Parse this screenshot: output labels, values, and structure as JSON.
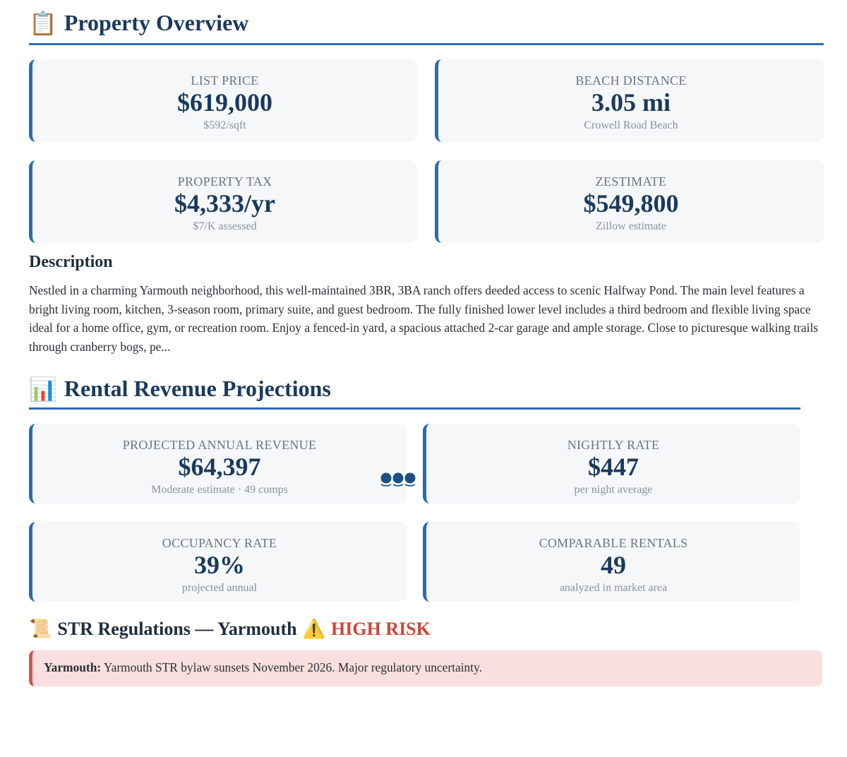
{
  "overview": {
    "icon": "clipboard-icon",
    "icon_glyph": "📋",
    "title": "Property Overview",
    "cards": [
      {
        "label": "LIST PRICE",
        "value": "$619,000",
        "sub": "$592/sqft"
      },
      {
        "label": "BEACH DISTANCE",
        "value": "3.05 mi",
        "sub": "Crowell Road Beach"
      },
      {
        "label": "PROPERTY TAX",
        "value": "$4,333/yr",
        "sub": "$7/K assessed"
      },
      {
        "label": "ZESTIMATE",
        "value": "$549,800",
        "sub": "Zillow estimate"
      }
    ]
  },
  "description": {
    "heading": "Description",
    "body": "Nestled in a charming Yarmouth neighborhood, this well-maintained 3BR, 3BA ranch offers deeded access to scenic Halfway Pond. The main level features a bright living room, kitchen, 3-season room, primary suite, and guest bedroom. The fully finished lower level includes a third bedroom and flexible living space ideal for a home office, gym, or recreation room. Enjoy a fenced-in yard, a spacious attached 2-car garage and ample storage. Close to picturesque walking trails through cranberry bogs, pe..."
  },
  "rental": {
    "icon": "bar-chart-icon",
    "icon_glyph": "📊",
    "title": "Rental Revenue Projections",
    "cards": [
      {
        "label": "PROJECTED ANNUAL REVENUE",
        "value": "$64,397",
        "sub": "Moderate estimate · 49 comps"
      },
      {
        "label": "NIGHTLY RATE",
        "value": "$447",
        "sub": "per night average"
      },
      {
        "label": "OCCUPANCY RATE",
        "value": "39%",
        "sub": "projected annual"
      },
      {
        "label": "COMPARABLE RENTALS",
        "value": "49",
        "sub": "analyzed in market area"
      }
    ],
    "confidence_icon": "confidence-dots-icon"
  },
  "regulations": {
    "icon": "scroll-icon",
    "icon_glyph": "📜",
    "title": "STR Regulations — Yarmouth",
    "warning_icon": "warning-icon",
    "warning_glyph": "⚠️",
    "risk_label": "HIGH RISK",
    "risk_color": "#d0453a",
    "town": "Yarmouth:",
    "note": "Yarmouth STR bylaw sunsets November 2026. Major regulatory uncertainty."
  },
  "colors": {
    "accent": "#2b6cb0",
    "heading": "#1b3a5c",
    "card_bg": "#f5f7f9",
    "alert_bg": "#f9dfdf",
    "alert_border": "#d9534f"
  }
}
